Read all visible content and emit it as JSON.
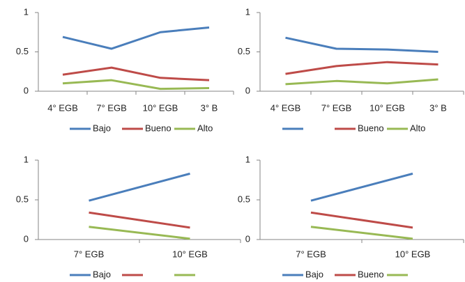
{
  "chart_data": [
    {
      "type": "line",
      "categories": [
        "4° EGB",
        "7° EGB",
        "10° EGB",
        "3° B"
      ],
      "ylim": [
        0,
        1
      ],
      "yticks": [
        0,
        0.5,
        1
      ],
      "legend": "bottom",
      "series": [
        {
          "name": "Bajo",
          "color": "#4a7ebb",
          "values": [
            0.69,
            0.54,
            0.75,
            0.81
          ]
        },
        {
          "name": "Bueno",
          "color": "#be4b48",
          "values": [
            0.21,
            0.3,
            0.17,
            0.14
          ]
        },
        {
          "name": "Alto",
          "color": "#98b954",
          "values": [
            0.1,
            0.14,
            0.03,
            0.04
          ]
        }
      ]
    },
    {
      "type": "line",
      "categories": [
        "4° EGB",
        "7° EGB",
        "10° EGB",
        "3° B"
      ],
      "ylim": [
        0,
        1
      ],
      "yticks": [
        0,
        0.5,
        1
      ],
      "legend": "bottom",
      "series": [
        {
          "name": null,
          "color": "#4a7ebb",
          "values": [
            0.68,
            0.54,
            0.53,
            0.5
          ]
        },
        {
          "name": "Bueno",
          "color": "#be4b48",
          "values": [
            0.22,
            0.32,
            0.37,
            0.34
          ]
        },
        {
          "name": "Alto",
          "color": "#98b954",
          "values": [
            0.09,
            0.13,
            0.1,
            0.15
          ]
        }
      ]
    },
    {
      "type": "line",
      "categories": [
        "7° EGB",
        "10° EGB"
      ],
      "ylim": [
        0,
        1
      ],
      "yticks": [
        0,
        0.5,
        1
      ],
      "legend": "bottom",
      "series": [
        {
          "name": "Bajo",
          "color": "#4a7ebb",
          "values": [
            0.49,
            0.83
          ]
        },
        {
          "name": null,
          "color": "#be4b48",
          "values": [
            0.34,
            0.15
          ]
        },
        {
          "name": null,
          "color": "#98b954",
          "values": [
            0.16,
            0.01
          ]
        }
      ]
    },
    {
      "type": "line",
      "categories": [
        "7° EGB",
        "10° EGB"
      ],
      "ylim": [
        0,
        1
      ],
      "yticks": [
        0,
        0.5,
        1
      ],
      "legend": "bottom",
      "series": [
        {
          "name": "Bajo",
          "color": "#4a7ebb",
          "values": [
            0.49,
            0.83
          ]
        },
        {
          "name": "Bueno",
          "color": "#be4b48",
          "values": [
            0.34,
            0.15
          ]
        },
        {
          "name": null,
          "color": "#98b954",
          "values": [
            0.16,
            0.01
          ]
        }
      ]
    }
  ]
}
